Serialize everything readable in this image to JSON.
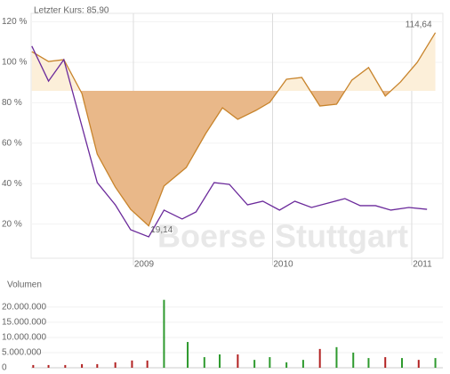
{
  "chart_data": [
    {
      "type": "line",
      "title": "Letzter Kurs: 85,90",
      "watermark": "Boerse Stuttgart",
      "xlim": [
        2008.265,
        2011.224
      ],
      "xticks": [
        2009,
        2010,
        2011
      ],
      "ylim": [
        3.1,
        124.2
      ],
      "yticks": [
        {
          "value": 20,
          "label": "20 %"
        },
        {
          "value": 40,
          "label": "40 %"
        },
        {
          "value": 60,
          "label": "60 %"
        },
        {
          "value": 80,
          "label": "80 %"
        },
        {
          "value": 100,
          "label": "100 %"
        },
        {
          "value": 120,
          "label": "120 %"
        }
      ],
      "grid": true,
      "baseline": 85.9,
      "fill_below": "#e9b889",
      "fill_above": "#fcefd9",
      "series": [
        {
          "color": "#c8842c",
          "x": [
            2008.27,
            2008.39,
            2008.5,
            2008.63,
            2008.74,
            2008.87,
            2008.98,
            2009.11,
            2009.22,
            2009.38,
            2009.52,
            2009.64,
            2009.75,
            2009.88,
            2009.98,
            2010.1,
            2010.21,
            2010.34,
            2010.46,
            2010.57,
            2010.69,
            2010.81,
            2010.92,
            2011.04,
            2011.17
          ],
          "values": [
            105.3,
            100.4,
            101.3,
            84.6,
            54.6,
            38.3,
            27.3,
            19.14,
            38.8,
            48.0,
            64.8,
            77.5,
            71.8,
            76.2,
            80.2,
            91.6,
            92.5,
            78.4,
            79.3,
            91.2,
            97.4,
            83.3,
            90.3,
            100.0,
            114.64
          ]
        },
        {
          "color": "#6b2a9b",
          "x": [
            2008.27,
            2008.39,
            2008.5,
            2008.74,
            2008.87,
            2008.98,
            2009.11,
            2009.22,
            2009.35,
            2009.45,
            2009.58,
            2009.69,
            2009.82,
            2009.93,
            2010.05,
            2010.16,
            2010.28,
            2010.52,
            2010.63,
            2010.74,
            2010.85,
            2010.98,
            2011.11
          ],
          "values": [
            108.0,
            90.7,
            101.3,
            40.5,
            29.5,
            17.2,
            13.7,
            26.9,
            22.5,
            26.0,
            40.5,
            39.6,
            29.5,
            31.3,
            26.9,
            31.3,
            28.2,
            32.6,
            29.1,
            29.1,
            26.9,
            28.2,
            27.3
          ]
        }
      ],
      "annotations": [
        {
          "series": 0,
          "index": 24,
          "label": "114,64"
        },
        {
          "series": 0,
          "index": 7,
          "label": "19,14"
        }
      ]
    },
    {
      "type": "bar",
      "title": "Volumen",
      "xlim": [
        2008.265,
        2011.224
      ],
      "ylim": [
        0,
        22900000
      ],
      "yticks": [
        0,
        {
          "value": 5000000,
          "label": "5.000.000"
        },
        {
          "value": 10000000,
          "label": "10.000.000"
        },
        {
          "value": 15000000,
          "label": "15.000.000"
        },
        {
          "value": 20000000,
          "label": "20.000.000"
        }
      ],
      "x": [
        2008.28,
        2008.39,
        2008.51,
        2008.63,
        2008.74,
        2008.87,
        2008.99,
        2009.1,
        2009.22,
        2009.39,
        2009.51,
        2009.62,
        2009.75,
        2009.87,
        2009.98,
        2010.1,
        2010.22,
        2010.34,
        2010.46,
        2010.58,
        2010.69,
        2010.81,
        2010.93,
        2011.05,
        2011.17
      ],
      "values": [
        900000,
        900000,
        900000,
        1200000,
        1200000,
        1800000,
        2400000,
        2400000,
        22400000,
        8500000,
        3500000,
        4400000,
        4400000,
        2600000,
        3500000,
        1800000,
        2600000,
        6200000,
        6800000,
        5000000,
        3200000,
        3500000,
        3200000,
        2600000,
        3200000
      ],
      "colors": [
        "#b22222",
        "#b22222",
        "#b22222",
        "#b22222",
        "#b22222",
        "#b22222",
        "#b22222",
        "#b22222",
        "#2e9a2e",
        "#2e9a2e",
        "#2e9a2e",
        "#2e9a2e",
        "#b22222",
        "#2e9a2e",
        "#2e9a2e",
        "#2e9a2e",
        "#2e9a2e",
        "#b22222",
        "#2e9a2e",
        "#2e9a2e",
        "#2e9a2e",
        "#b22222",
        "#2e9a2e",
        "#b22222",
        "#2e9a2e"
      ]
    }
  ]
}
